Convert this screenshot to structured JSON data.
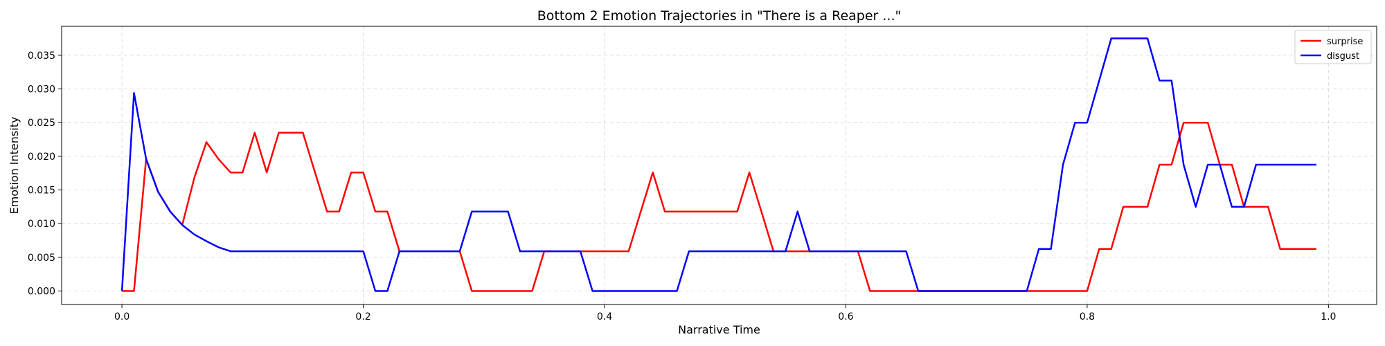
{
  "chart_data": {
    "type": "line",
    "title": "Bottom 2 Emotion Trajectories in \"There is a Reaper ...\"",
    "xlabel": "Narrative Time",
    "ylabel": "Emotion Intensity",
    "xlim": [
      -0.05,
      1.04
    ],
    "ylim": [
      -0.002,
      0.0393
    ],
    "xticks": [
      0.0,
      0.2,
      0.4,
      0.6,
      0.8,
      1.0
    ],
    "xtick_labels": [
      "0.0",
      "0.2",
      "0.4",
      "0.6",
      "0.8",
      "1.0"
    ],
    "yticks": [
      0.0,
      0.005,
      0.01,
      0.015,
      0.02,
      0.025,
      0.03,
      0.035
    ],
    "ytick_labels": [
      "0.000",
      "0.005",
      "0.010",
      "0.015",
      "0.020",
      "0.025",
      "0.030",
      "0.035"
    ],
    "grid": true,
    "legend_position": "top-right",
    "x": [
      0.0,
      0.01,
      0.02,
      0.03,
      0.04,
      0.05,
      0.06,
      0.07,
      0.08,
      0.09,
      0.1,
      0.11,
      0.12,
      0.13,
      0.14,
      0.15,
      0.16,
      0.17,
      0.18,
      0.19,
      0.2,
      0.21,
      0.22,
      0.23,
      0.24,
      0.25,
      0.26,
      0.27,
      0.28,
      0.29,
      0.3,
      0.31,
      0.32,
      0.33,
      0.34,
      0.35,
      0.36,
      0.37,
      0.38,
      0.39,
      0.4,
      0.41,
      0.42,
      0.43,
      0.44,
      0.45,
      0.46,
      0.47,
      0.48,
      0.49,
      0.5,
      0.51,
      0.52,
      0.53,
      0.54,
      0.55,
      0.56,
      0.57,
      0.58,
      0.59,
      0.6,
      0.61,
      0.62,
      0.63,
      0.64,
      0.65,
      0.66,
      0.67,
      0.68,
      0.69,
      0.7,
      0.71,
      0.72,
      0.73,
      0.74,
      0.75,
      0.76,
      0.77,
      0.78,
      0.79,
      0.8,
      0.81,
      0.82,
      0.83,
      0.84,
      0.85,
      0.86,
      0.87,
      0.88,
      0.89,
      0.9,
      0.91,
      0.92,
      0.93,
      0.94,
      0.95,
      0.96,
      0.97,
      0.98,
      0.99
    ],
    "series": [
      {
        "name": "surprise",
        "color": "#ff0000",
        "values": [
          0.0,
          0.0,
          0.0196,
          0.0147,
          0.0118,
          0.0098,
          0.0168,
          0.0221,
          0.0196,
          0.0176,
          0.0176,
          0.0235,
          0.0176,
          0.0235,
          0.0235,
          0.0235,
          0.0176,
          0.0118,
          0.0118,
          0.0176,
          0.0176,
          0.0118,
          0.0118,
          0.0059,
          0.0059,
          0.0059,
          0.0059,
          0.0059,
          0.0059,
          0.0,
          0.0,
          0.0,
          0.0,
          0.0,
          0.0,
          0.0059,
          0.0059,
          0.0059,
          0.0059,
          0.0059,
          0.0059,
          0.0059,
          0.0059,
          0.0118,
          0.0176,
          0.0118,
          0.0118,
          0.0118,
          0.0118,
          0.0118,
          0.0118,
          0.0118,
          0.0176,
          0.0118,
          0.0059,
          0.0059,
          0.0059,
          0.0059,
          0.0059,
          0.0059,
          0.0059,
          0.0059,
          0.0,
          0.0,
          0.0,
          0.0,
          0.0,
          0.0,
          0.0,
          0.0,
          0.0,
          0.0,
          0.0,
          0.0,
          0.0,
          0.0,
          0.0,
          0.0,
          0.0,
          0.0,
          0.0,
          0.00625,
          0.00625,
          0.0125,
          0.0125,
          0.0125,
          0.01875,
          0.01875,
          0.025,
          0.025,
          0.025,
          0.01875,
          0.01875,
          0.0125,
          0.0125,
          0.0125,
          0.00625,
          0.00625,
          0.00625,
          0.00625
        ]
      },
      {
        "name": "disgust",
        "color": "#0000ff",
        "values": [
          0.0,
          0.0294,
          0.0196,
          0.0147,
          0.0118,
          0.0098,
          0.0084,
          0.0074,
          0.0065,
          0.0059,
          0.0059,
          0.0059,
          0.0059,
          0.0059,
          0.0059,
          0.0059,
          0.0059,
          0.0059,
          0.0059,
          0.0059,
          0.0059,
          0.0,
          0.0,
          0.0059,
          0.0059,
          0.0059,
          0.0059,
          0.0059,
          0.0059,
          0.0118,
          0.0118,
          0.0118,
          0.0118,
          0.0059,
          0.0059,
          0.0059,
          0.0059,
          0.0059,
          0.0059,
          0.0,
          0.0,
          0.0,
          0.0,
          0.0,
          0.0,
          0.0,
          0.0,
          0.0059,
          0.0059,
          0.0059,
          0.0059,
          0.0059,
          0.0059,
          0.0059,
          0.0059,
          0.0059,
          0.0118,
          0.0059,
          0.0059,
          0.0059,
          0.0059,
          0.0059,
          0.0059,
          0.0059,
          0.0059,
          0.0059,
          0.0,
          0.0,
          0.0,
          0.0,
          0.0,
          0.0,
          0.0,
          0.0,
          0.0,
          0.0,
          0.00625,
          0.00625,
          0.01875,
          0.025,
          0.025,
          0.03125,
          0.0375,
          0.0375,
          0.0375,
          0.0375,
          0.03125,
          0.03125,
          0.01875,
          0.0125,
          0.01875,
          0.01875,
          0.0125,
          0.0125,
          0.01875,
          0.01875,
          0.01875,
          0.01875,
          0.01875,
          0.01875
        ]
      }
    ]
  }
}
